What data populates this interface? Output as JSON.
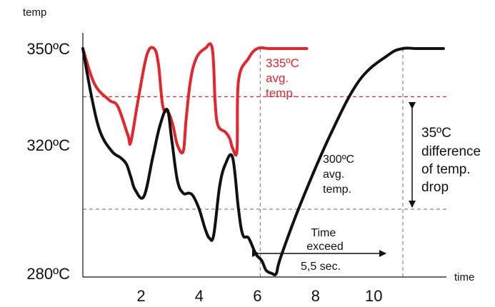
{
  "chart_data": {
    "type": "line",
    "ylabel": "temp",
    "xlabel": "time",
    "xlim": [
      0,
      12.5
    ],
    "ylim": [
      280,
      350
    ],
    "x_ticks": [
      "2",
      "4",
      "6",
      "8",
      "10"
    ],
    "x_tick_values": [
      2,
      4,
      6,
      8,
      10
    ],
    "y_ticks": [
      "350ºC",
      "320ºC",
      "280ºC"
    ],
    "y_tick_values": [
      350,
      320,
      280
    ],
    "grid": false,
    "colors": {
      "red": "#e4252b",
      "black": "#111111",
      "guide": "#888888"
    },
    "series": [
      {
        "color": "#e4252b",
        "x": [
          0,
          0.4,
          0.9,
          1.2,
          1.55,
          1.65,
          1.9,
          2.2,
          2.45,
          2.6,
          2.75,
          2.95,
          3.1,
          3.25,
          3.45,
          3.55,
          3.7,
          3.9,
          4.2,
          4.45,
          4.55,
          4.65,
          4.9,
          5.05,
          5.15,
          5.3,
          5.35,
          5.7,
          6.0,
          6.4,
          6.8,
          7.2,
          7.7
        ],
        "y": [
          350,
          339,
          334,
          332,
          323,
          321,
          334,
          348,
          350,
          345,
          332,
          330,
          326,
          320,
          318,
          328,
          340,
          347,
          350,
          350,
          333,
          326,
          324,
          322,
          319,
          318.5,
          340,
          347,
          350,
          350,
          350,
          350,
          350
        ]
      },
      {
        "color": "#111111",
        "x": [
          0,
          0.3,
          0.6,
          1.0,
          1.3,
          1.5,
          1.65,
          1.8,
          2.1,
          2.4,
          2.65,
          2.9,
          3.05,
          3.25,
          3.45,
          3.65,
          3.8,
          4.0,
          4.2,
          4.35,
          4.5,
          4.7,
          4.9,
          5.15,
          5.35,
          5.5,
          5.7,
          5.95,
          6.15,
          6.3,
          6.5,
          6.65,
          6.8,
          7.5,
          8.5,
          9.5,
          10.5,
          11.0,
          11.5,
          12.4
        ],
        "y": [
          350,
          335,
          324,
          318,
          316,
          314,
          310,
          306,
          304,
          316,
          326,
          331,
          322,
          309,
          305,
          305,
          304,
          300,
          294,
          291,
          292,
          307,
          314,
          316,
          300,
          292,
          291,
          286,
          284,
          281,
          280,
          280,
          285,
          302,
          323,
          340,
          348,
          350,
          350,
          350
        ]
      }
    ],
    "reference_lines": [
      {
        "axis": "y",
        "value": 335,
        "color": "#e4252b",
        "style": "dashed"
      },
      {
        "axis": "y",
        "value": 300,
        "color": "#888888",
        "style": "dashed"
      },
      {
        "axis": "x",
        "value": 6.1,
        "color": "#888888",
        "style": "dashed"
      },
      {
        "axis": "x",
        "value": 11.0,
        "color": "#888888",
        "style": "dashed"
      }
    ],
    "annotations": {
      "red_avg": [
        "335ºC",
        "avg.",
        "temp."
      ],
      "black_avg": [
        "300ºC",
        "avg.",
        "temp."
      ],
      "difference": [
        "35ºC",
        "difference",
        "of temp.",
        "drop"
      ],
      "time_exceed": [
        "Time",
        "exceed"
      ],
      "duration": "5,5 sec."
    }
  }
}
